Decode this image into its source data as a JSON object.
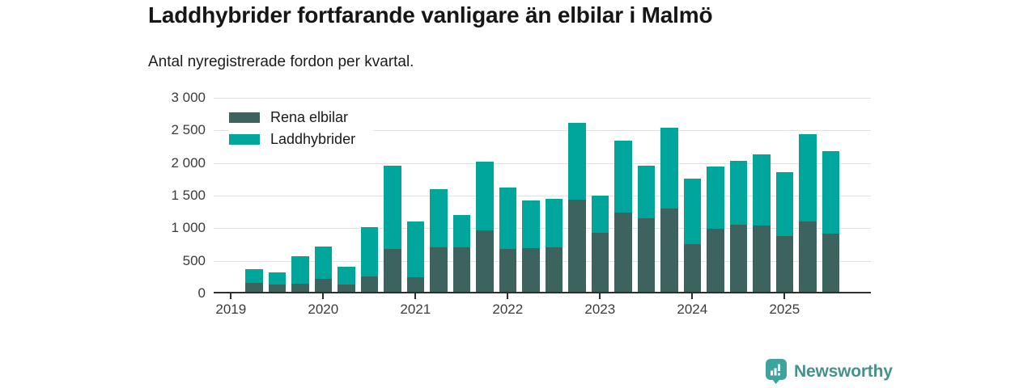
{
  "header": {
    "title": "Laddhybrider fortfarande vanligare än elbilar i Malmö",
    "subtitle": "Antal nyregistrerade fordon per kvartal."
  },
  "legend": {
    "items": [
      {
        "label": "Rena elbilar",
        "color": "#3d635e"
      },
      {
        "label": "Laddhybrider",
        "color": "#00a69b"
      }
    ]
  },
  "footer": {
    "brand": "Newsworthy",
    "badge_color": "#3ea39c",
    "text_color": "#45928d"
  },
  "chart_data": {
    "type": "bar",
    "stacked": true,
    "title": "Laddhybrider fortfarande vanligare än elbilar i Malmö",
    "subtitle": "Antal nyregistrerade fordon per kvartal.",
    "x": [
      "2019 Q2",
      "2019 Q3",
      "2019 Q4",
      "2020 Q1",
      "2020 Q2",
      "2020 Q3",
      "2020 Q4",
      "2021 Q1",
      "2021 Q2",
      "2021 Q3",
      "2021 Q4",
      "2022 Q1",
      "2022 Q2",
      "2022 Q3",
      "2022 Q4",
      "2023 Q1",
      "2023 Q2",
      "2023 Q3",
      "2023 Q4",
      "2024 Q1",
      "2024 Q2",
      "2024 Q3",
      "2024 Q4",
      "2025 Q1",
      "2025 Q2",
      "2025 Q3"
    ],
    "series": [
      {
        "name": "Rena elbilar",
        "color": "#3d635e",
        "values": [
          155,
          130,
          140,
          210,
          130,
          250,
          675,
          235,
          700,
          695,
          950,
          675,
          680,
          695,
          1420,
          915,
          1225,
          1135,
          1290,
          750,
          975,
          1040,
          1030,
          865,
          1095,
          910
        ]
      },
      {
        "name": "Laddhybrider",
        "color": "#00a69b",
        "values": [
          205,
          180,
          415,
          495,
          270,
          750,
          1275,
          855,
          890,
          490,
          1055,
          940,
          735,
          745,
          1180,
          575,
          1110,
          810,
          1235,
          1000,
          955,
          985,
          1090,
          985,
          1330,
          1260
        ]
      }
    ],
    "ylim": [
      0,
      3000
    ],
    "y_ticks": [
      0,
      500,
      1000,
      1500,
      2000,
      2500,
      3000
    ],
    "y_tick_labels": [
      "0",
      "500",
      "1 000",
      "1 500",
      "2 000",
      "2 500",
      "3 000"
    ],
    "x_tick_labels": [
      "2019",
      "2020",
      "2021",
      "2022",
      "2023",
      "2024",
      "2025"
    ],
    "x_tick_quarter_index": [
      0,
      4,
      8,
      12,
      16,
      20,
      24
    ],
    "grid": true,
    "legend_position": "top-left"
  }
}
